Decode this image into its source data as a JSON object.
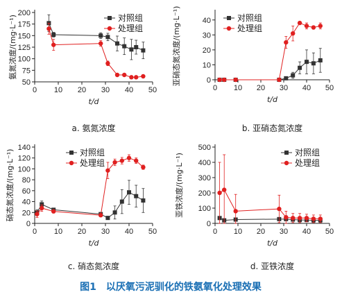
{
  "colors": {
    "control": "#333333",
    "treated": "#e02020",
    "caption": "#1a6fb4",
    "axis": "#222222"
  },
  "figure_caption": "图1　以厌氧污泥驯化的铁氨氧化处理效果",
  "chart_data": [
    {
      "type": "line",
      "caption": "a. 氨氮浓度",
      "ylabel": "氨氮浓度/(mg·L⁻¹)",
      "xlabel": "t/d",
      "xlim": [
        0,
        50
      ],
      "xticks": [
        0,
        10,
        20,
        30,
        40,
        50
      ],
      "ylim": [
        50,
        200
      ],
      "yticks": [
        50,
        75,
        100,
        125,
        150,
        175,
        200
      ],
      "legend_position": "top-right",
      "series": [
        {
          "name": "对照组",
          "marker": "square",
          "x": [
            6,
            8,
            28,
            31,
            35,
            38,
            41,
            43,
            46
          ],
          "y": [
            177,
            152,
            150,
            147,
            133,
            127,
            120,
            125,
            118
          ],
          "err": [
            18,
            5,
            6,
            8,
            16,
            18,
            22,
            15,
            18
          ]
        },
        {
          "name": "处理组",
          "marker": "circle",
          "x": [
            6,
            8,
            28,
            31,
            35,
            38,
            41,
            43,
            46
          ],
          "y": [
            165,
            130,
            133,
            90,
            65,
            65,
            60,
            60,
            62
          ],
          "err": [
            12,
            12,
            6,
            5,
            2,
            2,
            2,
            2,
            2
          ]
        }
      ]
    },
    {
      "type": "line",
      "caption": "b. 亚硝态氮浓度",
      "ylabel": "亚硝态氮浓度/(mg·L⁻¹)",
      "xlabel": "t/d",
      "xlim": [
        0,
        50
      ],
      "xticks": [
        0,
        10,
        20,
        30,
        40,
        50
      ],
      "ylim": [
        0,
        45
      ],
      "yticks": [
        0,
        10,
        20,
        30,
        40
      ],
      "legend_position": "top-left",
      "series": [
        {
          "name": "对照组",
          "marker": "square",
          "x": [
            2,
            4,
            9,
            28,
            31,
            34,
            37,
            40,
            43,
            46
          ],
          "y": [
            0,
            0,
            0,
            0,
            1,
            3,
            8,
            12,
            11,
            13
          ],
          "err": [
            0,
            0,
            0,
            0,
            1,
            2,
            4,
            8,
            7,
            8
          ]
        },
        {
          "name": "处理组",
          "marker": "circle",
          "x": [
            2,
            4,
            9,
            28,
            31,
            34,
            37,
            40,
            43,
            46
          ],
          "y": [
            0,
            0,
            0,
            0,
            25,
            31,
            38,
            36,
            35,
            36
          ],
          "err": [
            0,
            0,
            0,
            0,
            4,
            5,
            1,
            2,
            1,
            2
          ]
        }
      ]
    },
    {
      "type": "line",
      "caption": "c. 硝态氮浓度",
      "ylabel": "硝态氮浓度/(mg·L⁻¹)",
      "xlabel": "t/d",
      "xlim": [
        0,
        50
      ],
      "xticks": [
        0,
        10,
        20,
        30,
        40,
        50
      ],
      "ylim": [
        0,
        140
      ],
      "yticks": [
        0,
        20,
        40,
        60,
        80,
        100,
        120,
        140
      ],
      "legend_position": "top-center",
      "series": [
        {
          "name": "对照组",
          "marker": "square",
          "x": [
            1,
            3,
            8,
            28,
            31,
            34,
            37,
            40,
            43,
            46
          ],
          "y": [
            20,
            35,
            25,
            17,
            10,
            20,
            40,
            57,
            50,
            42
          ],
          "err": [
            5,
            6,
            3,
            3,
            3,
            12,
            22,
            22,
            20,
            22
          ]
        },
        {
          "name": "处理组",
          "marker": "circle",
          "x": [
            1,
            3,
            8,
            28,
            31,
            34,
            37,
            40,
            43,
            46
          ],
          "y": [
            17,
            28,
            22,
            15,
            97,
            112,
            115,
            120,
            115,
            103
          ],
          "err": [
            6,
            6,
            3,
            3,
            15,
            6,
            6,
            6,
            5,
            4
          ]
        }
      ]
    },
    {
      "type": "line",
      "caption": "d. 亚铁浓度",
      "ylabel": "亚铁浓度/(mg·L⁻¹)",
      "xlabel": "t/d",
      "xlim": [
        0,
        50
      ],
      "xticks": [
        0,
        10,
        20,
        30,
        40,
        50
      ],
      "ylim": [
        0,
        500
      ],
      "yticks": [
        0,
        100,
        200,
        300,
        400,
        500
      ],
      "legend_position": "top-right",
      "series": [
        {
          "name": "对照组",
          "marker": "square",
          "x": [
            2,
            4,
            9,
            28,
            31,
            34,
            37,
            40,
            43,
            46
          ],
          "y": [
            35,
            20,
            25,
            28,
            28,
            25,
            22,
            22,
            20,
            20
          ],
          "err": [
            10,
            8,
            8,
            10,
            10,
            10,
            10,
            10,
            10,
            10
          ]
        },
        {
          "name": "处理组",
          "marker": "circle",
          "x": [
            2,
            4,
            9,
            28,
            31,
            34,
            37,
            40,
            43,
            46
          ],
          "y": [
            200,
            220,
            80,
            95,
            40,
            35,
            35,
            35,
            30,
            30
          ],
          "err": [
            200,
            230,
            110,
            90,
            40,
            30,
            30,
            25,
            25,
            25
          ]
        }
      ]
    }
  ]
}
